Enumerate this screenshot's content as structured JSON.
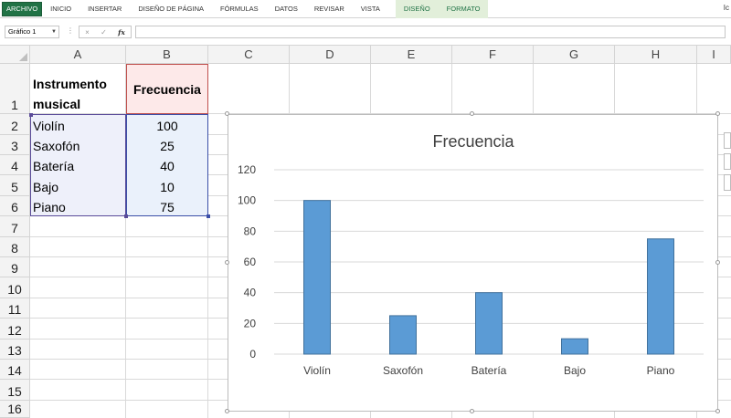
{
  "ribbon": {
    "tabs": [
      "ARCHIVO",
      "INICIO",
      "INSERTAR",
      "DISEÑO DE PÁGINA",
      "FÓRMULAS",
      "DATOS",
      "REVISAR",
      "VISTA"
    ],
    "context_tabs": [
      "DISEÑO",
      "FORMATO"
    ],
    "user": "Ic"
  },
  "formula_bar": {
    "name_box": "Gráfico 1",
    "cancel_icon": "×",
    "enter_icon": "✓",
    "fx_icon": "fx",
    "value": ""
  },
  "sheet": {
    "columns": [
      "A",
      "B",
      "C",
      "D",
      "E",
      "F",
      "G",
      "H",
      "I"
    ],
    "rows": [
      "1",
      "2",
      "3",
      "4",
      "5",
      "6",
      "7",
      "8",
      "9",
      "10",
      "11",
      "12",
      "13",
      "14",
      "15",
      "16"
    ],
    "header_a_line1": "Instrumento",
    "header_a_line2": "musical",
    "header_b": "Frecuencia",
    "table": [
      {
        "instrumento": "Violín",
        "frecuencia": "100"
      },
      {
        "instrumento": "Saxofón",
        "frecuencia": "25"
      },
      {
        "instrumento": "Batería",
        "frecuencia": "40"
      },
      {
        "instrumento": "Bajo",
        "frecuencia": "10"
      },
      {
        "instrumento": "Piano",
        "frecuencia": "75"
      }
    ]
  },
  "colors": {
    "bar_fill": "#5b9bd5",
    "bar_stroke": "#41719c",
    "accent": "#217346"
  },
  "chart_data": {
    "type": "bar",
    "title": "Frecuencia",
    "categories": [
      "Violín",
      "Saxofón",
      "Batería",
      "Bajo",
      "Piano"
    ],
    "values": [
      100,
      25,
      40,
      10,
      75
    ],
    "yticks": [
      "0",
      "20",
      "40",
      "60",
      "80",
      "100",
      "120"
    ],
    "ylim": [
      0,
      120
    ],
    "grid": true,
    "legend": "none"
  }
}
